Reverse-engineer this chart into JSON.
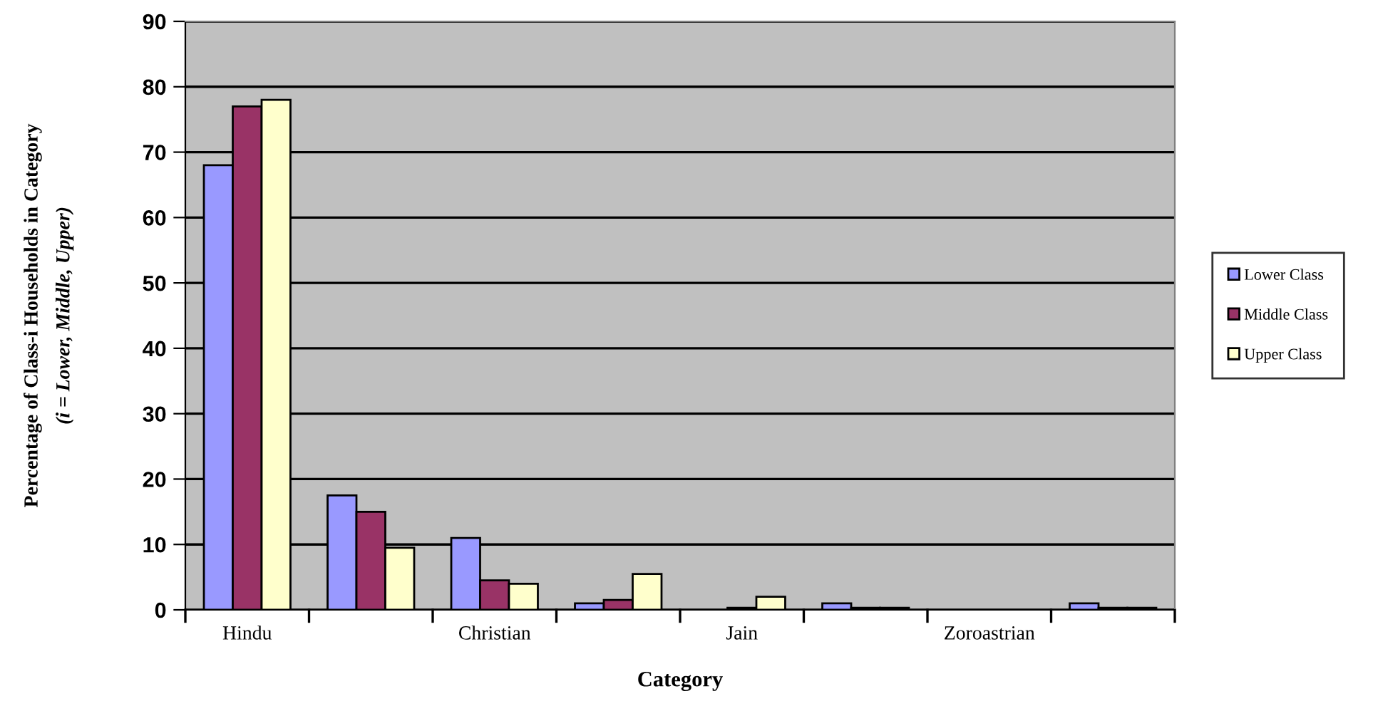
{
  "chart_data": {
    "type": "bar",
    "xlabel": "Category",
    "ylabel": "Percentage of Class-i Households in Category\n(i = Lower, Middle, Upper)",
    "categories": [
      "Hindu",
      null,
      "Christian",
      null,
      "Jain",
      null,
      "Zoroastrian",
      null
    ],
    "series": [
      {
        "name": "Lower Class",
        "color": "#9999ff",
        "values": [
          68,
          17.5,
          11,
          1,
          null,
          1,
          null,
          1
        ]
      },
      {
        "name": "Middle Class",
        "color": "#993366",
        "values": [
          77,
          15,
          4.5,
          1.5,
          0.3,
          0.3,
          null,
          0.3
        ]
      },
      {
        "name": "Upper Class",
        "color": "#ffffcc",
        "values": [
          78,
          9.5,
          4,
          5.5,
          2,
          0.3,
          null,
          0.3
        ]
      }
    ],
    "ylim": [
      0,
      90
    ],
    "yticks": [
      0,
      10,
      20,
      30,
      40,
      50,
      60,
      70,
      80,
      90
    ],
    "grid": "y",
    "legend": "right"
  }
}
